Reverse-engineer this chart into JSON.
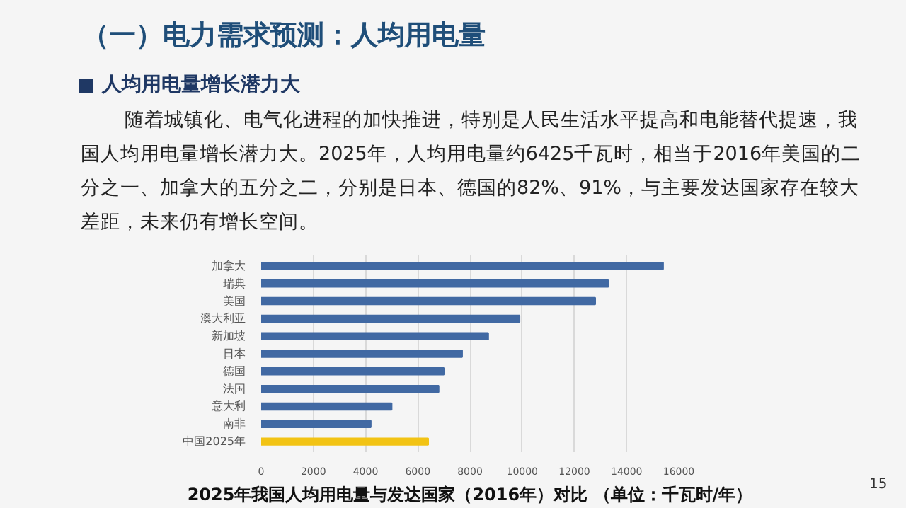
{
  "chart_data": {
    "type": "bar",
    "orientation": "horizontal",
    "title": "（一）电力需求预测：人均用电量",
    "subtitle": "人均用电量增长潜力大",
    "annotations": [
      "随着城镇化、电气化进程的加快推进，特别是人民生活水平提高和电能替代提速，我",
      "国人均用电量增长潜力大。2025年，人均用电量约6425千瓦时，相当于2016年美国的二",
      "分之一、加拿大的五分之二，分别是日本、德国的82%、91%，与主要发达国家存在较大",
      "差距，未来仍有增长空间。",
      "15"
    ],
    "xlabel": "2025年我国人均用电量与发达国家（2016年）对比 （单位：千瓦时/年）",
    "categories": [
      "加拿大",
      "瑞典",
      "美国",
      "澳大利亚",
      "新加坡",
      "日本",
      "德国",
      "法国",
      "意大利",
      "南非",
      "中国2025年"
    ],
    "values": [
      15400,
      13300,
      12800,
      9900,
      8700,
      7700,
      7000,
      6800,
      5000,
      4200,
      6400
    ],
    "colors": [
      "#4169a3",
      "#4169a3",
      "#4169a3",
      "#4169a3",
      "#4169a3",
      "#4169a3",
      "#4169a3",
      "#4169a3",
      "#4169a3",
      "#4169a3",
      "#f2c314"
    ],
    "xlim": [
      0,
      16000
    ],
    "xticks": [
      0,
      2000,
      4000,
      6000,
      8000,
      10000,
      12000,
      14000,
      16000
    ],
    "grid": "x"
  }
}
